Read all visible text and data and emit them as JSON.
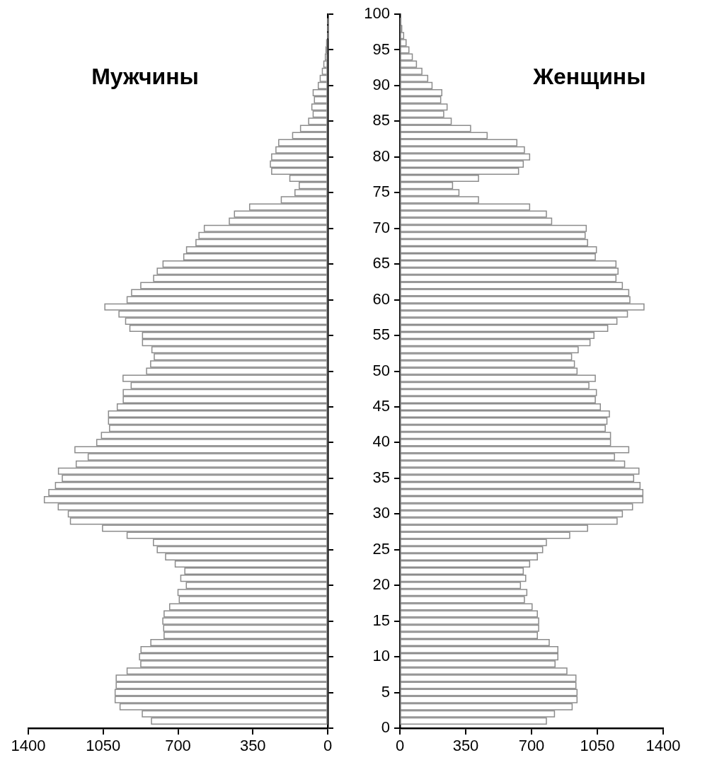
{
  "chart_data": [
    {
      "type": "histogram",
      "title": "Мужчины",
      "orientation": "horizontal",
      "color": "#8c8c8c",
      "tick_labels": "x",
      "bins": [
        0.5,
        1.5,
        2.5,
        3.5,
        4.5,
        5.5,
        6.5,
        7.5,
        8.5,
        9.5,
        10.5,
        11.5,
        12.5,
        13.5,
        14.5,
        15.5,
        16.5,
        17.5,
        18.5,
        19.5,
        20.5,
        21.5,
        22.5,
        23.5,
        24.5,
        25.5,
        26.5,
        27.5,
        28.5,
        29.5,
        30.5,
        31.5,
        32.5,
        33.5,
        34.5,
        35.5,
        36.5,
        37.5,
        38.5,
        39.5,
        40.5,
        41.5,
        42.5,
        43.5,
        44.5,
        45.5,
        46.5,
        47.5,
        48.5,
        49.5,
        50.5,
        51.5,
        52.5,
        53.5,
        54.5,
        55.5,
        56.5,
        57.5,
        58.5,
        59.5,
        60.5,
        61.5,
        62.5,
        63.5,
        64.5,
        65.5,
        66.5,
        67.5,
        68.5,
        69.5,
        70.5,
        71.5,
        72.5,
        73.5,
        74.5,
        75.5,
        76.5,
        77.5,
        78.5,
        79.5,
        80.5,
        81.5,
        82.5,
        83.5,
        84.5,
        85.5,
        86.5,
        87.5,
        88.5,
        89.5,
        90.5,
        91.5,
        92.5,
        93.5,
        94.5,
        95.5,
        96.5,
        97.5,
        98.5,
        99.5
      ],
      "values": [
        824,
        867,
        971,
        994,
        994,
        989,
        989,
        938,
        874,
        880,
        873,
        827,
        765,
        767,
        771,
        765,
        739,
        694,
        700,
        661,
        687,
        668,
        713,
        758,
        797,
        815,
        938,
        1053,
        1203,
        1213,
        1260,
        1325,
        1304,
        1273,
        1241,
        1259,
        1176,
        1120,
        1182,
        1080,
        1058,
        1020,
        1025,
        1025,
        984,
        956,
        956,
        919,
        957,
        847,
        828,
        811,
        822,
        866,
        866,
        925,
        945,
        976,
        1042,
        938,
        917,
        874,
        814,
        797,
        770,
        673,
        660,
        616,
        602,
        577,
        460,
        436,
        365,
        217,
        153,
        133,
        177,
        262,
        268,
        262,
        242,
        229,
        164,
        127,
        89,
        68,
        74,
        62,
        68,
        44,
        35,
        25,
        18,
        11,
        8,
        5,
        0,
        0,
        0
      ],
      "xlim": [
        1400,
        0
      ],
      "xticks": [
        1400,
        1050,
        700,
        350,
        0
      ],
      "ylim": [
        0,
        100
      ],
      "yticks": [
        0,
        5,
        10,
        15,
        20,
        25,
        30,
        35,
        40,
        45,
        50,
        55,
        60,
        65,
        70,
        75,
        80,
        85,
        90,
        95,
        100
      ]
    },
    {
      "type": "histogram",
      "title": "Женщины",
      "orientation": "horizontal",
      "color": "#8c8c8c",
      "bins": [
        0.5,
        1.5,
        2.5,
        3.5,
        4.5,
        5.5,
        6.5,
        7.5,
        8.5,
        9.5,
        10.5,
        11.5,
        12.5,
        13.5,
        14.5,
        15.5,
        16.5,
        17.5,
        18.5,
        19.5,
        20.5,
        21.5,
        22.5,
        23.5,
        24.5,
        25.5,
        26.5,
        27.5,
        28.5,
        29.5,
        30.5,
        31.5,
        32.5,
        33.5,
        34.5,
        35.5,
        36.5,
        37.5,
        38.5,
        39.5,
        40.5,
        41.5,
        42.5,
        43.5,
        44.5,
        45.5,
        46.5,
        47.5,
        48.5,
        49.5,
        50.5,
        51.5,
        52.5,
        53.5,
        54.5,
        55.5,
        56.5,
        57.5,
        58.5,
        59.5,
        60.5,
        61.5,
        62.5,
        63.5,
        64.5,
        65.5,
        66.5,
        67.5,
        68.5,
        69.5,
        70.5,
        71.5,
        72.5,
        73.5,
        74.5,
        75.5,
        76.5,
        77.5,
        78.5,
        79.5,
        80.5,
        81.5,
        82.5,
        83.5,
        84.5,
        85.5,
        86.5,
        87.5,
        88.5,
        89.5,
        90.5,
        91.5,
        92.5,
        93.5,
        94.5,
        95.5,
        96.5,
        97.5,
        98.5,
        99.5
      ],
      "values": [
        779,
        822,
        916,
        942,
        942,
        936,
        936,
        888,
        825,
        840,
        840,
        794,
        731,
        738,
        738,
        731,
        703,
        662,
        675,
        641,
        669,
        656,
        690,
        731,
        759,
        779,
        903,
        998,
        1155,
        1183,
        1237,
        1292,
        1292,
        1277,
        1243,
        1271,
        1195,
        1141,
        1217,
        1120,
        1120,
        1092,
        1101,
        1114,
        1066,
        1039,
        1045,
        1005,
        1039,
        942,
        928,
        913,
        948,
        1011,
        1032,
        1105,
        1154,
        1210,
        1298,
        1223,
        1217,
        1183,
        1149,
        1160,
        1149,
        1039,
        1045,
        998,
        985,
        991,
        807,
        779,
        690,
        418,
        314,
        280,
        418,
        631,
        656,
        690,
        662,
        622,
        464,
        376,
        273,
        233,
        251,
        217,
        223,
        171,
        148,
        117,
        88,
        66,
        48,
        33,
        20,
        10,
        5
      ],
      "xlim": [
        0,
        1400
      ],
      "xticks": [
        0,
        350,
        700,
        1050,
        1400
      ],
      "ylim": [
        0,
        100
      ],
      "yticks": [
        0,
        5,
        10,
        15,
        20,
        25,
        30,
        35,
        40,
        45,
        50,
        55,
        60,
        65,
        70,
        75,
        80,
        85,
        90,
        95,
        100
      ]
    }
  ]
}
